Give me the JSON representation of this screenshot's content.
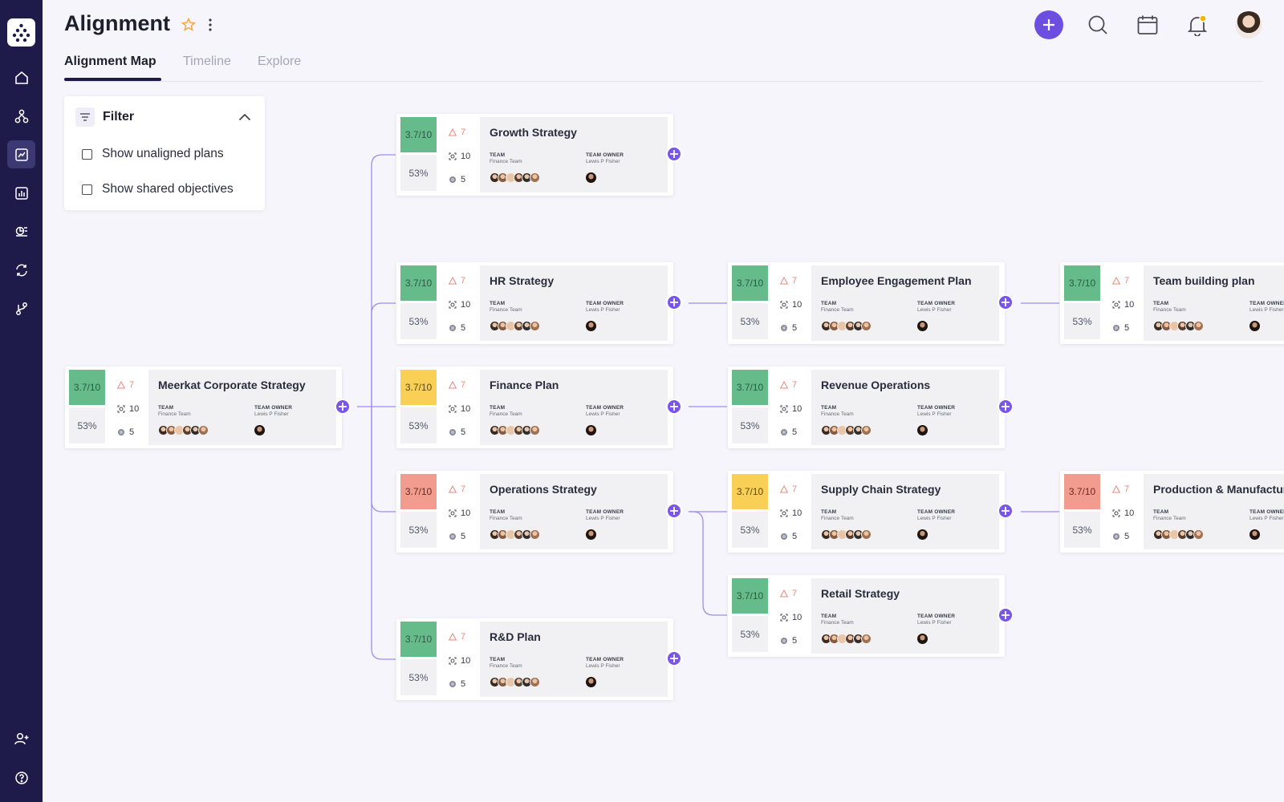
{
  "header": {
    "title": "Alignment"
  },
  "tabs": [
    {
      "label": "Alignment Map"
    },
    {
      "label": "Timeline"
    },
    {
      "label": "Explore"
    }
  ],
  "filter": {
    "title": "Filter",
    "options": [
      {
        "label": "Show unaligned plans"
      },
      {
        "label": "Show shared objectives"
      }
    ]
  },
  "card_labels": {
    "team": "TEAM",
    "team_owner": "TEAM OWNER"
  },
  "cards": [
    {
      "title": "Meerkat Corporate Strategy",
      "score": "3.7/10",
      "score_color": "green",
      "pct": "53%",
      "warnings": "7",
      "objectives": "10",
      "key_results": "5",
      "team": "Finance Team",
      "owner": "Lewis P Fisher"
    },
    {
      "title": "Growth Strategy",
      "score": "3.7/10",
      "score_color": "green",
      "pct": "53%",
      "warnings": "7",
      "objectives": "10",
      "key_results": "5",
      "team": "Finance Team",
      "owner": "Lewis P Fisher"
    },
    {
      "title": "HR Strategy",
      "score": "3.7/10",
      "score_color": "green",
      "pct": "53%",
      "warnings": "7",
      "objectives": "10",
      "key_results": "5",
      "team": "Finance Team",
      "owner": "Lewis P Fisher"
    },
    {
      "title": "Finance Plan",
      "score": "3.7/10",
      "score_color": "yellow",
      "pct": "53%",
      "warnings": "7",
      "objectives": "10",
      "key_results": "5",
      "team": "Finance Team",
      "owner": "Lewis P Fisher"
    },
    {
      "title": "Operations Strategy",
      "score": "3.7/10",
      "score_color": "red",
      "pct": "53%",
      "warnings": "7",
      "objectives": "10",
      "key_results": "5",
      "team": "Finance Team",
      "owner": "Lewis P Fisher"
    },
    {
      "title": "R&D Plan",
      "score": "3.7/10",
      "score_color": "green",
      "pct": "53%",
      "warnings": "7",
      "objectives": "10",
      "key_results": "5",
      "team": "Finance Team",
      "owner": "Lewis P Fisher"
    },
    {
      "title": "Employee Engagement Plan",
      "score": "3.7/10",
      "score_color": "green",
      "pct": "53%",
      "warnings": "7",
      "objectives": "10",
      "key_results": "5",
      "team": "Finance Team",
      "owner": "Lewis P Fisher"
    },
    {
      "title": "Revenue Operations",
      "score": "3.7/10",
      "score_color": "green",
      "pct": "53%",
      "warnings": "7",
      "objectives": "10",
      "key_results": "5",
      "team": "Finance Team",
      "owner": "Lewis P Fisher"
    },
    {
      "title": "Supply Chain Strategy",
      "score": "3.7/10",
      "score_color": "yellow",
      "pct": "53%",
      "warnings": "7",
      "objectives": "10",
      "key_results": "5",
      "team": "Finance Team",
      "owner": "Lewis P Fisher"
    },
    {
      "title": "Retail Strategy",
      "score": "3.7/10",
      "score_color": "green",
      "pct": "53%",
      "warnings": "7",
      "objectives": "10",
      "key_results": "5",
      "team": "Finance Team",
      "owner": "Lewis P Fisher"
    },
    {
      "title": "Team building plan",
      "score": "3.7/10",
      "score_color": "green",
      "pct": "53%",
      "warnings": "7",
      "objectives": "10",
      "key_results": "5",
      "team": "Finance Team",
      "owner": "Lewis P Fisher"
    },
    {
      "title": "Production & Manufacturing",
      "score": "3.7/10",
      "score_color": "red",
      "pct": "53%",
      "warnings": "7",
      "objectives": "10",
      "key_results": "5",
      "team": "Finance Team",
      "owner": "Lewis P Fisher"
    }
  ],
  "colors": {
    "sidebar": "#1e1b4b",
    "accent": "#7a56e8",
    "green": "#66bb8b",
    "yellow": "#f9cf56",
    "red": "#f29b8f",
    "connector": "#a08cf0"
  }
}
